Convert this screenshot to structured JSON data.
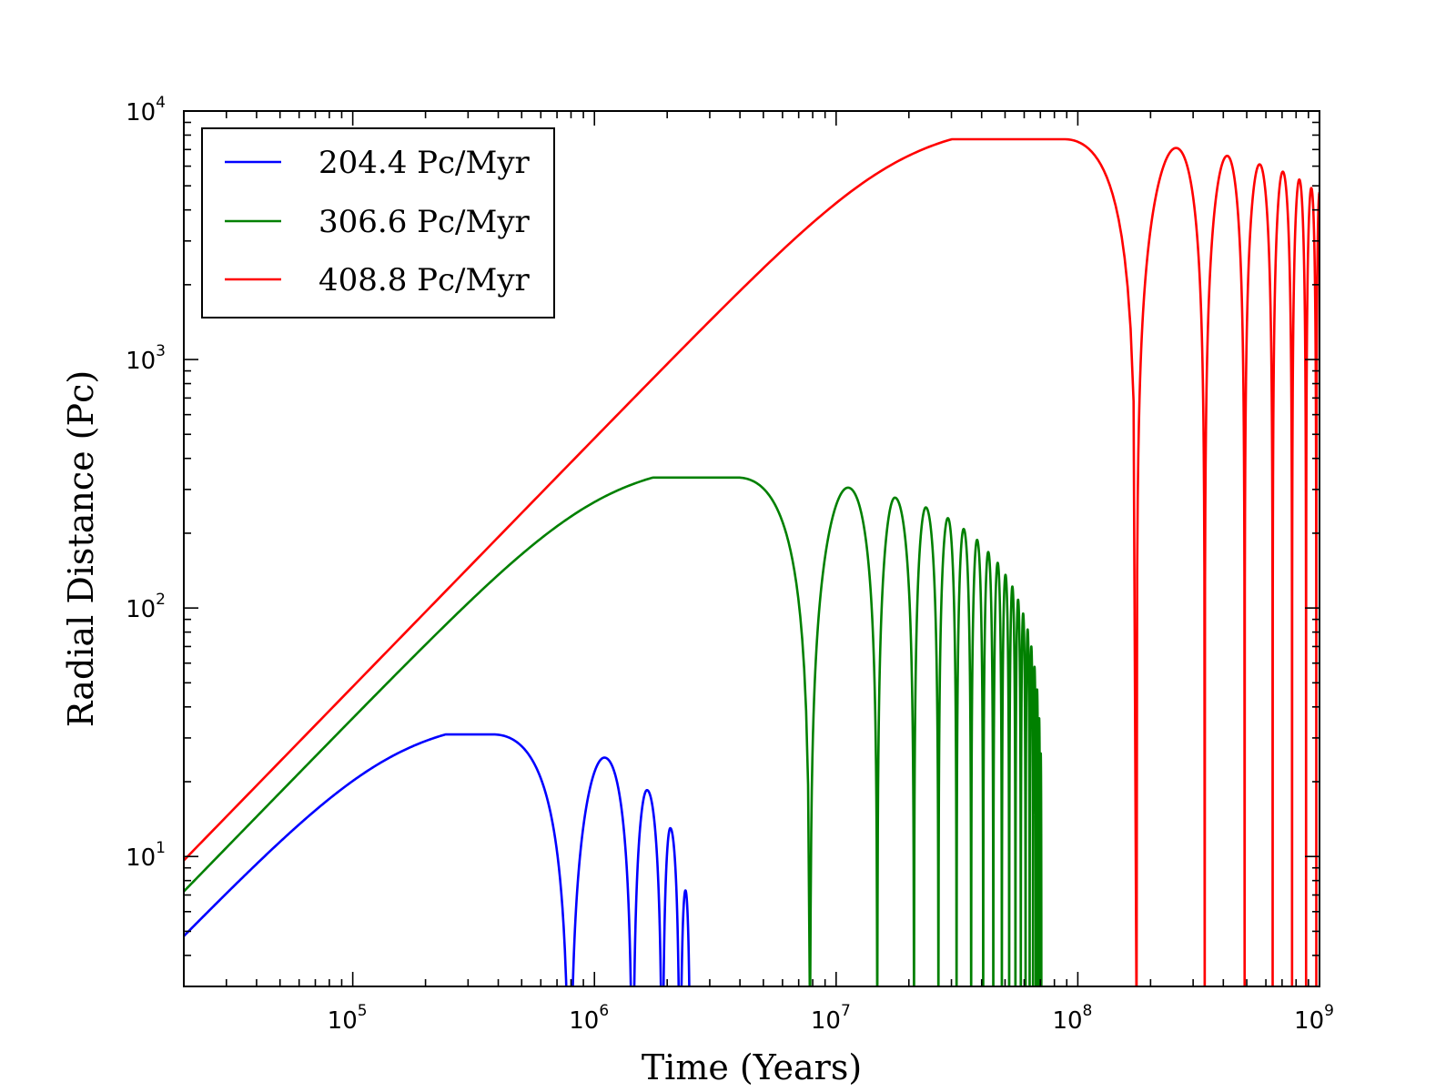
{
  "chart_data": {
    "type": "line",
    "xlabel": "Time (Years)",
    "ylabel": "Radial Distance (Pc)",
    "xscale": "log",
    "yscale": "log",
    "xlim": [
      20000,
      1000000000
    ],
    "ylim": [
      3,
      10000
    ],
    "grid": false,
    "legend_position": "top-left",
    "x_ticks": [
      {
        "value": 100000,
        "base": "10",
        "exp": "5"
      },
      {
        "value": 1000000,
        "base": "10",
        "exp": "6"
      },
      {
        "value": 10000000,
        "base": "10",
        "exp": "7"
      },
      {
        "value": 100000000,
        "base": "10",
        "exp": "8"
      },
      {
        "value": 1000000000,
        "base": "10",
        "exp": "9"
      }
    ],
    "y_ticks": [
      {
        "value": 10,
        "base": "10",
        "exp": "1"
      },
      {
        "value": 100,
        "base": "10",
        "exp": "2"
      },
      {
        "value": 1000,
        "base": "10",
        "exp": "3"
      },
      {
        "value": 10000,
        "base": "10",
        "exp": "4"
      }
    ],
    "series": [
      {
        "name": "204.4 Pc/Myr",
        "color": "#0000ff",
        "velocity_pc_per_myr": 204.4,
        "arches": [
          {
            "start": 0,
            "end": 790000,
            "peak_time": 380000,
            "peak": 31
          },
          {
            "start": 790000,
            "end": 1440000,
            "peak_time": 1100000,
            "peak": 25
          },
          {
            "start": 1440000,
            "end": 1910000,
            "peak_time": 1650000,
            "peak": 18.5
          },
          {
            "start": 1910000,
            "end": 2260000,
            "peak_time": 2060000,
            "peak": 13
          },
          {
            "start": 2260000,
            "end": 2500000,
            "peak_time": 2380000,
            "peak": 7.3
          }
        ]
      },
      {
        "name": "306.6 Pc/Myr",
        "color": "#008000",
        "velocity_pc_per_myr": 306.6,
        "arches": [
          {
            "start": 0,
            "end": 7800000,
            "peak_time": 3900000,
            "peak": 335
          },
          {
            "start": 7800000,
            "end": 14800000,
            "peak_time": 11200000,
            "peak": 305
          },
          {
            "start": 14800000,
            "end": 21000000,
            "peak_time": 17500000,
            "peak": 278
          },
          {
            "start": 21000000,
            "end": 26500000,
            "peak_time": 23500000,
            "peak": 254
          },
          {
            "start": 26500000,
            "end": 31500000,
            "peak_time": 29000000,
            "peak": 230
          },
          {
            "start": 31500000,
            "end": 36200000,
            "peak_time": 33700000,
            "peak": 208
          },
          {
            "start": 36200000,
            "end": 40600000,
            "peak_time": 38300000,
            "peak": 188
          },
          {
            "start": 40600000,
            "end": 44700000,
            "peak_time": 42600000,
            "peak": 168
          },
          {
            "start": 44700000,
            "end": 48500000,
            "peak_time": 46600000,
            "peak": 152
          },
          {
            "start": 48500000,
            "end": 52000000,
            "peak_time": 50200000,
            "peak": 136
          },
          {
            "start": 52000000,
            "end": 55200000,
            "peak_time": 53600000,
            "peak": 122
          },
          {
            "start": 55200000,
            "end": 58100000,
            "peak_time": 56600000,
            "peak": 108
          },
          {
            "start": 58100000,
            "end": 60800000,
            "peak_time": 59400000,
            "peak": 95
          },
          {
            "start": 60800000,
            "end": 63200000,
            "peak_time": 62000000,
            "peak": 82
          },
          {
            "start": 63200000,
            "end": 65300000,
            "peak_time": 64200000,
            "peak": 70
          },
          {
            "start": 65300000,
            "end": 67100000,
            "peak_time": 66200000,
            "peak": 58
          },
          {
            "start": 67100000,
            "end": 68600000,
            "peak_time": 67850000,
            "peak": 47
          },
          {
            "start": 68600000,
            "end": 69800000,
            "peak_time": 69200000,
            "peak": 36
          },
          {
            "start": 69800000,
            "end": 70700000,
            "peak_time": 70250000,
            "peak": 26
          }
        ]
      },
      {
        "name": "408.8 Pc/Myr",
        "color": "#ff0000",
        "velocity_pc_per_myr": 408.8,
        "arches": [
          {
            "start": 0,
            "end": 175000000,
            "peak_time": 88000000,
            "peak": 7700
          },
          {
            "start": 175000000,
            "end": 335000000,
            "peak_time": 255000000,
            "peak": 7100
          },
          {
            "start": 335000000,
            "end": 490000000,
            "peak_time": 415000000,
            "peak": 6600
          },
          {
            "start": 490000000,
            "end": 640000000,
            "peak_time": 565000000,
            "peak": 6100
          },
          {
            "start": 640000000,
            "end": 770000000,
            "peak_time": 705000000,
            "peak": 5700
          },
          {
            "start": 770000000,
            "end": 880000000,
            "peak_time": 825000000,
            "peak": 5300
          },
          {
            "start": 880000000,
            "end": 970000000,
            "peak_time": 925000000,
            "peak": 4900
          },
          {
            "start": 970000000,
            "end": 1000000000,
            "peak_time": 1000000000,
            "peak": 4700
          }
        ]
      }
    ]
  }
}
